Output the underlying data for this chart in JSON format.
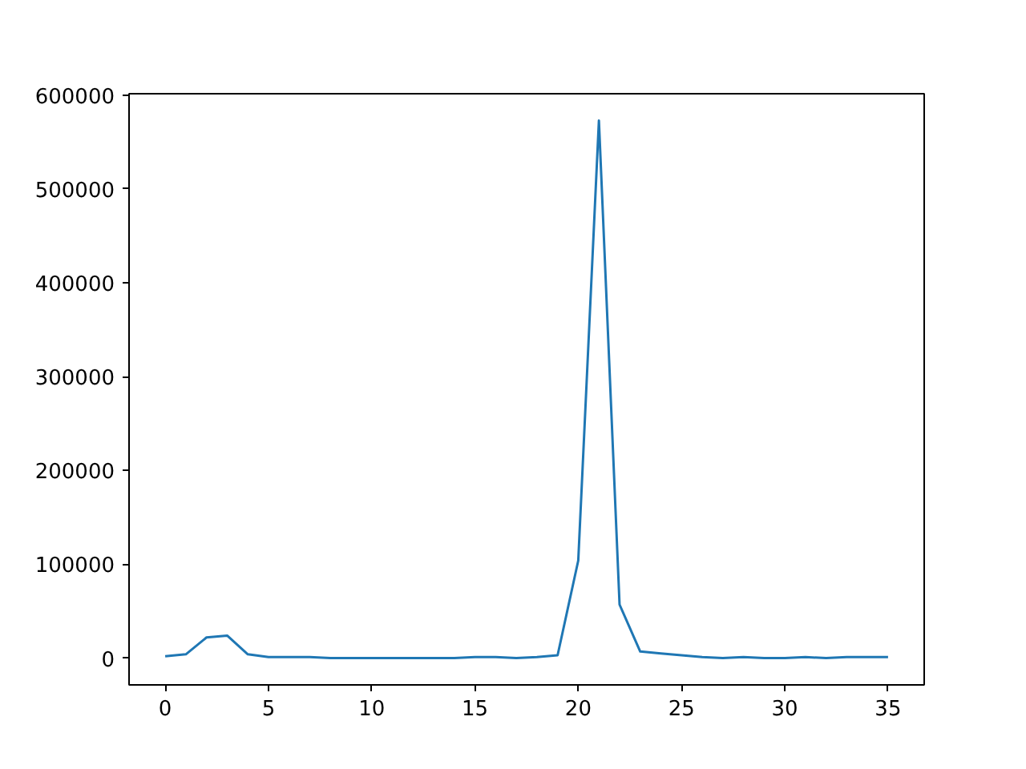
{
  "chart_data": {
    "type": "line",
    "x": [
      0,
      1,
      2,
      3,
      4,
      5,
      6,
      7,
      8,
      9,
      10,
      11,
      12,
      13,
      14,
      15,
      16,
      17,
      18,
      19,
      20,
      21,
      22,
      23,
      24,
      25,
      26,
      27,
      28,
      29,
      30,
      31,
      32,
      33,
      34,
      35
    ],
    "series": [
      {
        "color": "#1f77b4",
        "values": [
          2000,
          4000,
          22000,
          24000,
          4000,
          1000,
          1000,
          1000,
          0,
          0,
          0,
          0,
          0,
          0,
          0,
          1000,
          1000,
          0,
          1000,
          3000,
          104000,
          573000,
          57000,
          7000,
          5000,
          3000,
          1000,
          0,
          1000,
          0,
          0,
          1000,
          0,
          1000,
          1000,
          1000
        ]
      }
    ],
    "xlim": [
      -1.75,
      36.75
    ],
    "ylim": [
      -28600,
      601600
    ],
    "xticks": [
      0,
      5,
      10,
      15,
      20,
      25,
      30,
      35
    ],
    "yticks": [
      0,
      100000,
      200000,
      300000,
      400000,
      500000,
      600000
    ],
    "grid": false
  }
}
